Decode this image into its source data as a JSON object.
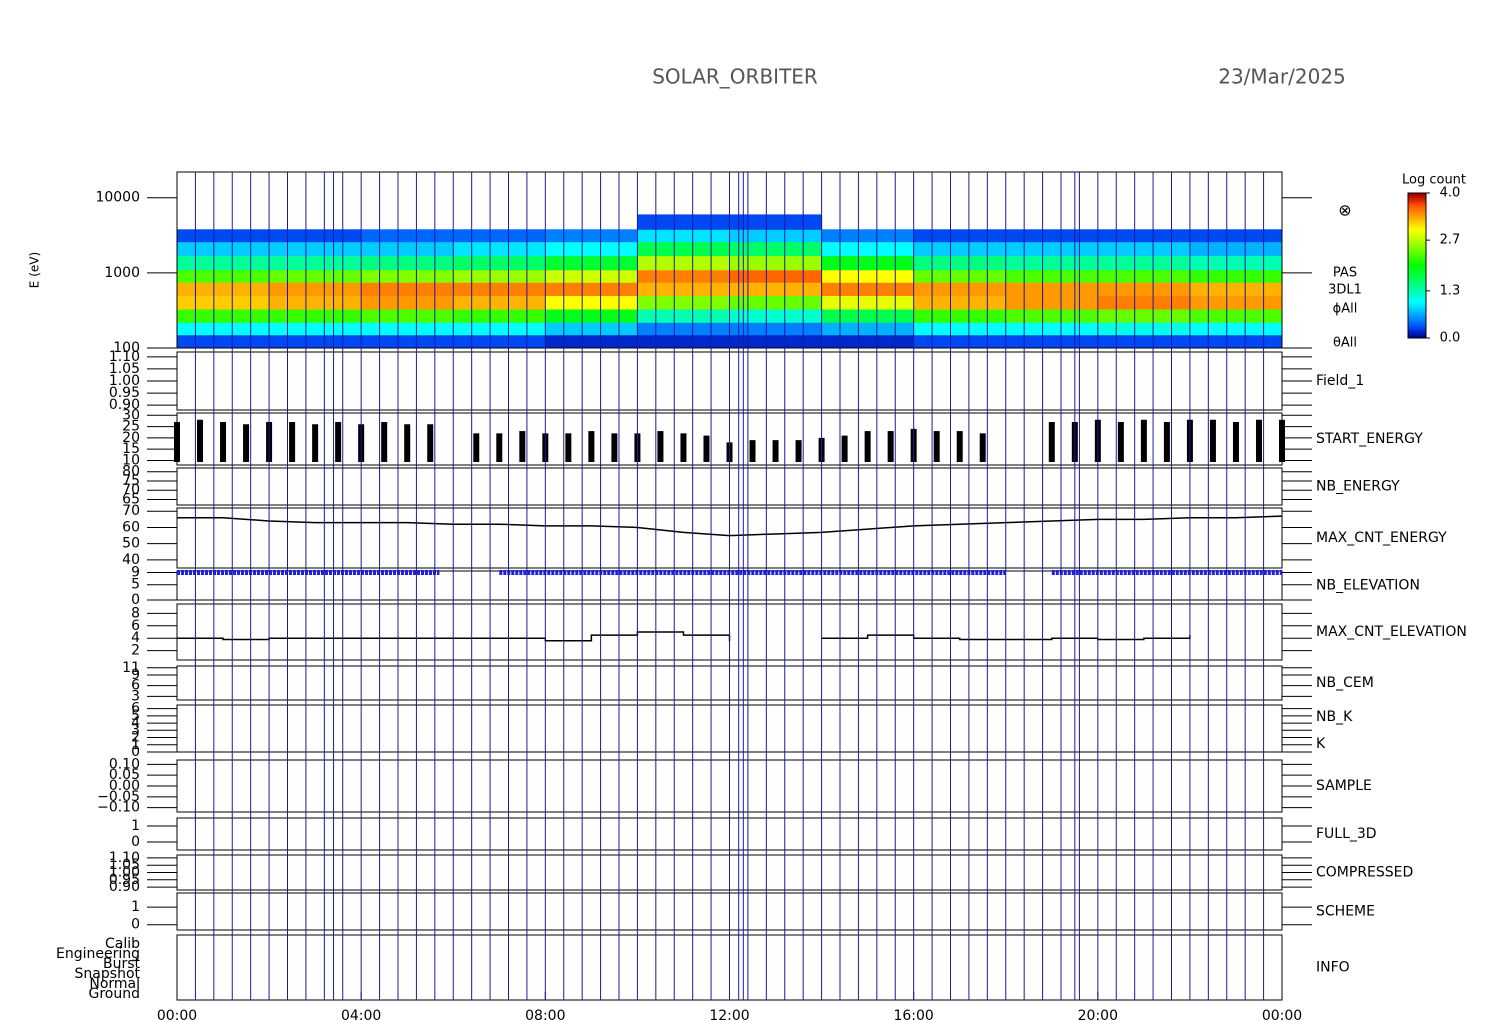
{
  "header": {
    "title": "SOLAR_ORBITER",
    "date": "23/Mar/2025"
  },
  "boundaries": [
    0.4,
    0.8,
    1.2,
    1.6,
    2.0,
    2.4,
    2.8,
    3.2,
    3.4,
    3.6,
    4.0,
    4.4,
    4.8,
    5.2,
    5.6,
    6.0,
    6.4,
    6.8,
    7.2,
    7.6,
    8.0,
    8.4,
    8.8,
    9.2,
    9.6,
    10.0,
    10.4,
    10.8,
    11.2,
    11.6,
    12.0,
    12.2,
    12.3,
    12.4,
    12.8,
    13.2,
    13.6,
    14.0,
    14.4,
    14.8,
    15.2,
    15.6,
    16.0,
    16.4,
    16.8,
    17.2,
    17.6,
    18.0,
    18.4,
    18.8,
    19.2,
    19.5,
    19.6,
    20.0,
    20.4,
    20.8,
    21.2,
    21.6,
    22.0,
    22.4,
    22.8,
    23.2,
    23.6
  ],
  "chart_data": [
    {
      "type": "heatmap",
      "ylabel": "E (eV)",
      "log": true,
      "ylim": [
        100,
        22000
      ],
      "yticks": [
        100,
        1000,
        10000
      ],
      "labels": [
        {
          "text": "PAS",
          "color": "#000000"
        },
        {
          "text": "3DL1",
          "color": "#000000"
        },
        {
          "text": "ϕAll",
          "color": "#000000"
        },
        {
          "text": "θAll",
          "color": "#000000"
        }
      ],
      "symbol": "⊗",
      "colormap": "rainbow",
      "colorbar": {
        "title": "Log count",
        "lim": [
          0,
          4
        ],
        "ticks": [
          {
            "value": 0,
            "label": "0.0"
          },
          {
            "value": 1.3,
            "label": "1.3"
          },
          {
            "value": 2.7,
            "label": "2.7"
          },
          {
            "value": 4,
            "label": "4.0"
          }
        ]
      },
      "time_edges": [
        0,
        2,
        4,
        6,
        8,
        10,
        12,
        14,
        16,
        18,
        20,
        22,
        24
      ],
      "energy_edges": [
        100,
        150,
        220,
        330,
        500,
        750,
        1100,
        1700,
        2600,
        3800,
        6000
      ],
      "z": [
        [
          0.3,
          1.0,
          2.2,
          3.2,
          3.3,
          2.3,
          1.4,
          0.8,
          0.3,
          null
        ],
        [
          0.3,
          1.0,
          2.2,
          3.3,
          3.4,
          2.4,
          1.4,
          0.8,
          0.3,
          null
        ],
        [
          0.3,
          1.0,
          2.3,
          3.4,
          3.5,
          2.5,
          1.5,
          0.8,
          0.4,
          null
        ],
        [
          0.3,
          1.0,
          2.2,
          3.3,
          3.5,
          2.6,
          1.6,
          0.9,
          0.4,
          null
        ],
        [
          0.2,
          0.8,
          1.9,
          3.0,
          3.5,
          2.8,
          1.8,
          1.0,
          0.5,
          null
        ],
        [
          0.2,
          0.5,
          1.3,
          2.5,
          3.3,
          3.5,
          2.7,
          1.7,
          0.9,
          0.3
        ],
        [
          0.2,
          0.5,
          1.2,
          2.4,
          3.3,
          3.6,
          2.6,
          1.6,
          0.8,
          0.3
        ],
        [
          0.2,
          0.7,
          1.7,
          2.9,
          3.5,
          3.0,
          1.9,
          1.0,
          0.5,
          null
        ],
        [
          0.3,
          1.0,
          2.2,
          3.3,
          3.4,
          2.4,
          1.5,
          0.8,
          0.3,
          null
        ],
        [
          0.3,
          1.0,
          2.3,
          3.4,
          3.4,
          2.3,
          1.4,
          0.8,
          0.3,
          null
        ],
        [
          0.3,
          1.1,
          2.4,
          3.5,
          3.4,
          2.3,
          1.4,
          0.8,
          0.3,
          null
        ],
        [
          0.3,
          1.0,
          2.3,
          3.4,
          3.3,
          2.2,
          1.3,
          0.7,
          0.3,
          null
        ]
      ]
    },
    {
      "type": "line",
      "labels": [
        {
          "text": "Field_1",
          "color": "#2020c0"
        }
      ],
      "ylim": [
        0.88,
        1.12
      ],
      "yticks": [
        {
          "value": 0.9,
          "label": "0.90"
        },
        {
          "value": 0.95,
          "label": "0.95"
        },
        {
          "value": 1,
          "label": "1.00"
        },
        {
          "value": 1.05,
          "label": "1.05"
        },
        {
          "value": 1.1,
          "label": "1.10"
        }
      ]
    },
    {
      "type": "line",
      "labels": [
        {
          "text": "START_ENERGY",
          "color": "#000000"
        }
      ],
      "ylim": [
        8,
        31
      ],
      "yticks": [
        10,
        15,
        20,
        25,
        30
      ],
      "series": [
        {
          "style": "spikes",
          "color": "#000000",
          "x": [
            0,
            0.5,
            1,
            1.5,
            2,
            2.5,
            3,
            3.5,
            4,
            4.5,
            5,
            5.5,
            6,
            6.5,
            7,
            7.5,
            8,
            8.5,
            9,
            9.5,
            10,
            10.5,
            11,
            11.5,
            12,
            12.5,
            13,
            13.5,
            14,
            14.5,
            15,
            15.5,
            16,
            16.5,
            17,
            17.5,
            18,
            18.5,
            19,
            19.5,
            20,
            20.5,
            21,
            21.5,
            22,
            22.5,
            23,
            23.5,
            24
          ],
          "values": [
            27,
            28,
            27,
            26,
            27,
            27,
            26,
            27,
            26,
            27,
            26,
            26,
            null,
            22,
            22,
            23,
            22,
            22,
            23,
            22,
            22,
            23,
            22,
            21,
            18,
            19,
            19,
            19,
            20,
            21,
            23,
            23,
            24,
            23,
            23,
            22,
            null,
            null,
            27,
            27,
            28,
            27,
            28,
            27,
            28,
            28,
            27,
            28,
            28
          ]
        }
      ]
    },
    {
      "type": "line",
      "labels": [
        {
          "text": "NB_ENERGY",
          "color": "#2020c0"
        }
      ],
      "ylim": [
        62,
        82
      ],
      "yticks": [
        65,
        70,
        75,
        80
      ]
    },
    {
      "type": "line",
      "labels": [
        {
          "text": "MAX_CNT_ENERGY",
          "color": "#000000"
        }
      ],
      "ylim": [
        35,
        72
      ],
      "yticks": [
        40,
        50,
        60,
        70
      ],
      "series": [
        {
          "style": "line",
          "color": "#000000",
          "x": [
            0,
            1,
            2,
            3,
            4,
            5,
            6,
            7,
            8,
            9,
            10,
            11,
            12,
            13,
            14,
            15,
            16,
            17,
            18,
            19,
            20,
            21,
            22,
            23,
            24
          ],
          "values": [
            66,
            66,
            64,
            63,
            63,
            63,
            62,
            62,
            61,
            61,
            60,
            57,
            55,
            56,
            57,
            59,
            61,
            62,
            63,
            64,
            65,
            65,
            66,
            66,
            67
          ]
        }
      ]
    },
    {
      "type": "line",
      "labels": [
        {
          "text": "NB_ELEVATION",
          "color": "#2020c0"
        }
      ],
      "ylim": [
        0,
        9.5
      ],
      "yticks": [
        0,
        5,
        9
      ],
      "series": [
        {
          "style": "dashes",
          "color": "#2020e0",
          "x": [
            0,
            1,
            2,
            3,
            4,
            5,
            5.7,
            6.6,
            7,
            8,
            9,
            10,
            11,
            12,
            13,
            14,
            15,
            16,
            17,
            18,
            18.7,
            19,
            20,
            21,
            22,
            23,
            24
          ],
          "values": [
            9,
            9,
            9,
            9,
            9,
            9,
            9,
            null,
            9,
            9,
            9,
            9,
            9,
            9,
            9,
            9,
            9,
            9,
            9,
            9,
            null,
            9,
            9,
            9,
            9,
            9,
            9
          ]
        }
      ]
    },
    {
      "type": "line",
      "labels": [
        {
          "text": "MAX_CNT_ELEVATION",
          "color": "#000000"
        }
      ],
      "ylim": [
        0.5,
        9.5
      ],
      "yticks": [
        2,
        4,
        6,
        8
      ],
      "series": [
        {
          "style": "steps",
          "color": "#000000",
          "x": [
            0,
            1,
            2,
            3,
            4,
            5,
            6,
            7,
            8,
            9,
            10,
            11,
            12,
            13,
            14,
            15,
            16,
            17,
            18,
            19,
            20,
            21,
            22,
            23,
            24
          ],
          "values": [
            4,
            3.8,
            4,
            4,
            4,
            4,
            4,
            4,
            3.6,
            4.5,
            5,
            4.5,
            3.5,
            null,
            4,
            4.5,
            4,
            3.8,
            3.8,
            4,
            3.8,
            4,
            4.5,
            null,
            null
          ]
        }
      ]
    },
    {
      "type": "line",
      "labels": [
        {
          "text": "NB_CEM",
          "color": "#2020c0"
        }
      ],
      "ylim": [
        2,
        11.5
      ],
      "yticks": [
        3,
        6,
        9,
        11
      ]
    },
    {
      "type": "line",
      "labels": [
        {
          "text": "NB_K",
          "color": "#c02020"
        },
        {
          "text": "K",
          "color": "#2020c0"
        }
      ],
      "ylim": [
        0,
        6.5
      ],
      "yticks": [
        0,
        1,
        2,
        3,
        4,
        5,
        6
      ]
    },
    {
      "type": "line",
      "labels": [
        {
          "text": "SAMPLE",
          "color": "#2020c0"
        }
      ],
      "ylim": [
        -0.12,
        0.12
      ],
      "yticks": [
        {
          "value": -0.1,
          "label": "−0.10"
        },
        {
          "value": -0.05,
          "label": "−0.05"
        },
        {
          "value": 0,
          "label": "0.00"
        },
        {
          "value": 0.05,
          "label": "0.05"
        },
        {
          "value": 0.1,
          "label": "0.10"
        }
      ]
    },
    {
      "type": "line",
      "labels": [
        {
          "text": "FULL_3D",
          "color": "#2020c0"
        }
      ],
      "ylim": [
        -0.5,
        1.5
      ],
      "yticks": [
        0,
        1
      ]
    },
    {
      "type": "line",
      "labels": [
        {
          "text": "COMPRESSED",
          "color": "#000000"
        }
      ],
      "ylim": [
        0.88,
        1.12
      ],
      "yticks": [
        {
          "value": 0.9,
          "label": "0.90"
        },
        {
          "value": 0.95,
          "label": "0.95"
        },
        {
          "value": 1,
          "label": "1.00"
        },
        {
          "value": 1.05,
          "label": "1.05"
        },
        {
          "value": 1.1,
          "label": "1.10"
        }
      ]
    },
    {
      "type": "line",
      "labels": [
        {
          "text": "SCHEME",
          "color": "#000000"
        }
      ],
      "ylim": [
        -0.3,
        1.8
      ],
      "yticks": [
        0,
        1
      ]
    },
    {
      "type": "categorical",
      "labels": [
        {
          "text": "INFO",
          "color": "#000000"
        }
      ],
      "categories": [
        "Calib",
        "Engineering",
        "Burst",
        "Snapshot",
        "Normal",
        "Ground"
      ],
      "xlim": [
        0,
        24
      ],
      "xticks": [
        {
          "value": 0,
          "label": "00:00"
        },
        {
          "value": 4,
          "label": "04:00"
        },
        {
          "value": 8,
          "label": "08:00"
        },
        {
          "value": 12,
          "label": "12:00"
        },
        {
          "value": 16,
          "label": "16:00"
        },
        {
          "value": 20,
          "label": "20:00"
        },
        {
          "value": 24,
          "label": "00:00"
        }
      ]
    }
  ]
}
